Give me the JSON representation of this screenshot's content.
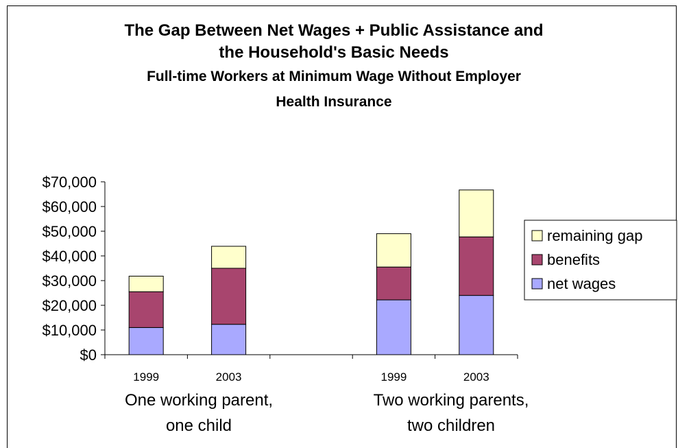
{
  "chart_data": {
    "type": "bar",
    "stacked": true,
    "title": "The Gap Between Net Wages + Public Assistance and the Household's Basic Needs",
    "title_lines": [
      "The Gap Between Net Wages + Public Assistance and",
      "the Household's Basic Needs"
    ],
    "subtitle": "Full-time Workers at Minimum Wage Without Employer Health Insurance",
    "subtitle_lines": [
      "Full-time Workers at Minimum Wage Without Employer",
      "Health Insurance"
    ],
    "groups": [
      {
        "label": "One working parent, one child",
        "label_lines": [
          "One working parent,",
          "one child"
        ],
        "categories": [
          "1999",
          "2003"
        ]
      },
      {
        "label": "Two working parents, two children",
        "label_lines": [
          "Two working parents,",
          "two children"
        ],
        "categories": [
          "1999",
          "2003"
        ]
      }
    ],
    "categories": [
      "1999",
      "2003",
      "1999",
      "2003"
    ],
    "series": [
      {
        "name": "net wages",
        "color": "#A9A9FF",
        "values": [
          11000,
          12300,
          22200,
          24000
        ]
      },
      {
        "name": "benefits",
        "color": "#A8456E",
        "values": [
          14500,
          22700,
          13300,
          23700
        ]
      },
      {
        "name": "remaining gap",
        "color": "#FFFFCC",
        "values": [
          6300,
          8900,
          13500,
          19000
        ]
      }
    ],
    "yticks": [
      "$0",
      "$10,000",
      "$20,000",
      "$30,000",
      "$40,000",
      "$50,000",
      "$60,000",
      "$70,000"
    ],
    "ylim": [
      0,
      70000
    ],
    "legend_position": "right",
    "grid": false
  }
}
